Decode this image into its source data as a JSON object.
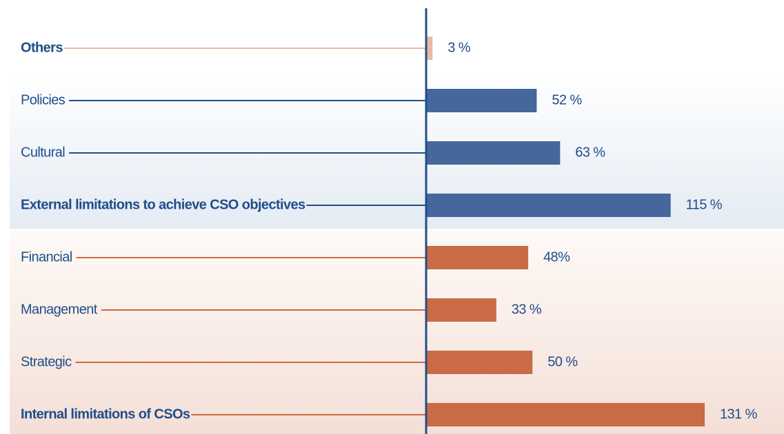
{
  "chart_data": {
    "type": "bar",
    "orientation": "horizontal",
    "categories": [
      "Others",
      "Policies",
      "Cultural",
      "External limitations to achieve CSO objectives",
      "Financial",
      "Management",
      "Strategic",
      "Internal limitations of CSOs"
    ],
    "values": [
      3,
      52,
      63,
      115,
      48,
      33,
      50,
      131
    ],
    "value_labels": [
      "3 %",
      "52 %",
      "63 %",
      "115 %",
      "48%",
      "33 %",
      "50 %",
      "131 %"
    ],
    "colors": [
      "#eab9a4",
      "#45679c",
      "#45679c",
      "#45679c",
      "#c96b45",
      "#c96b45",
      "#c96b45",
      "#c96b45"
    ],
    "bold": [
      true,
      false,
      false,
      true,
      false,
      false,
      false,
      true
    ]
  }
}
